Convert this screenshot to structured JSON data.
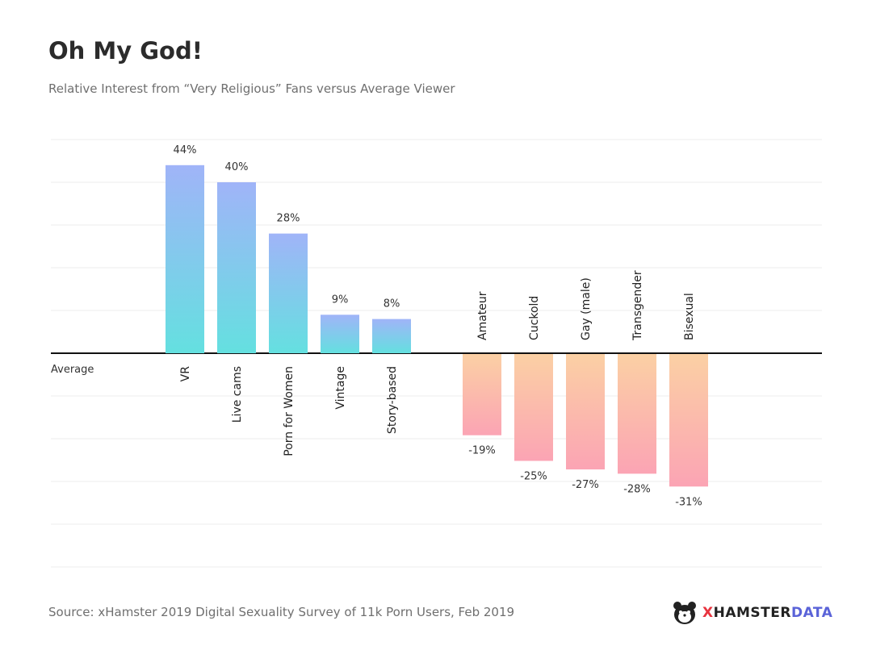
{
  "title": "Oh My God!",
  "subtitle": "Relative Interest from “Very Religious” Fans versus Average Viewer",
  "source": "Source: xHamster 2019 Digital Sexuality Survey of 11k Porn Users, Feb 2019",
  "logo": {
    "x": "X",
    "hamster": "HAMSTER",
    "data": "DATA",
    "icon": "hamster-face-icon"
  },
  "colors": {
    "positive_top": "#a0b4f8",
    "positive_bottom": "#64e0e0",
    "negative_top": "#fbd0a4",
    "negative_bottom": "#fba4b4",
    "grid": "#ececec",
    "baseline": "#111111"
  },
  "chart_data": {
    "type": "bar",
    "baseline_label": "Average",
    "categories": [
      "VR",
      "Live cams",
      "Porn for Women",
      "Vintage",
      "Story-based",
      "Amateur",
      "Cuckold",
      "Gay (male)",
      "Transgender",
      "Bisexual"
    ],
    "values": [
      44,
      40,
      28,
      9,
      8,
      -19,
      -25,
      -27,
      -28,
      -31
    ],
    "data_labels": [
      "44%",
      "40%",
      "28%",
      "9%",
      "8%",
      "-19%",
      "-25%",
      "-27%",
      "-28%",
      "-31%"
    ],
    "ylim": [
      -50,
      50
    ],
    "grid": true,
    "unit": "%"
  }
}
